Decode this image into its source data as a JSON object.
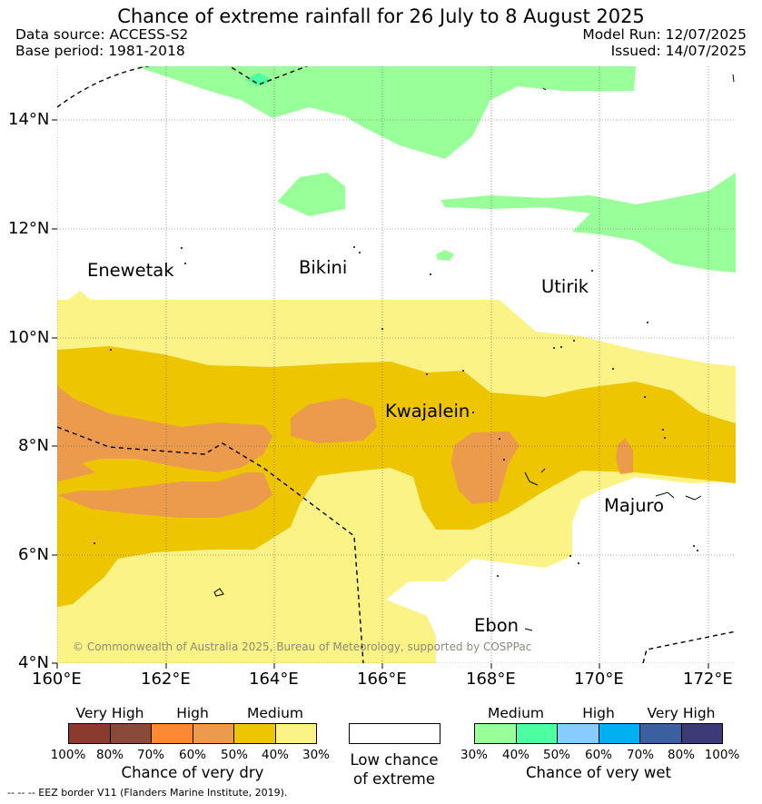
{
  "header": {
    "title": "Chance of extreme rainfall for 26 July to 8 August 2025",
    "data_source": "Data source: ACCESS-S2",
    "base_period": "Base period: 1981-2018",
    "model_run": "Model Run: 12/07/2025",
    "issued": "Issued: 14/07/2025"
  },
  "map": {
    "lat_labels": [
      "14°N",
      "12°N",
      "10°N",
      "8°N",
      "6°N",
      "4°N"
    ],
    "lon_labels": [
      "160°E",
      "162°E",
      "164°E",
      "166°E",
      "168°E",
      "170°E",
      "172°E"
    ],
    "places": [
      "Enewetak",
      "Bikini",
      "Utirik",
      "Kwajalein",
      "Majuro",
      "Ebon"
    ],
    "copyright": "© Commonwealth of Australia 2025, Bureau of Meteorology, supported by COSPPac"
  },
  "legend": {
    "dry": {
      "categories": [
        "Very High",
        "High",
        "Medium"
      ],
      "ticks": [
        "100%",
        "80%",
        "70%",
        "60%",
        "50%",
        "40%",
        "30%"
      ],
      "colors": [
        "#8b3a2e",
        "#8a4a3a",
        "#ff8833",
        "#eb9b4b",
        "#edc500",
        "#fcf387"
      ],
      "title": "Chance of very dry"
    },
    "low": {
      "title_line1": "Low chance",
      "title_line2": "of extreme",
      "color": "#ffffff"
    },
    "wet": {
      "categories": [
        "Medium",
        "High",
        "Very High"
      ],
      "ticks": [
        "30%",
        "40%",
        "50%",
        "60%",
        "70%",
        "80%",
        "100%"
      ],
      "colors": [
        "#99ff99",
        "#4cffa0",
        "#88ccff",
        "#00b0f0",
        "#3a60a0",
        "#3d3a78"
      ],
      "title": "Chance of very wet"
    },
    "eez_note": "--  --  -- EEZ border V11 (Flanders Marine Institute, 2019)."
  }
}
